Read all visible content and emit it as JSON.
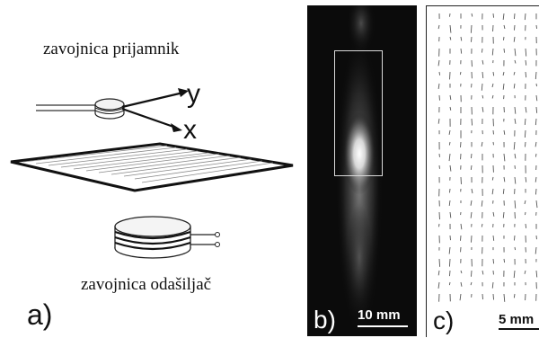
{
  "panel_a": {
    "label": "a)",
    "receiver_label": "zavojnica prijamnik",
    "transmitter_label": "zavojnica odašiljač",
    "axis_y": "y",
    "axis_x": "x"
  },
  "panel_b": {
    "label": "b)",
    "scale": "10 mm"
  },
  "panel_c": {
    "label": "c)",
    "scale": "5 mm"
  }
}
